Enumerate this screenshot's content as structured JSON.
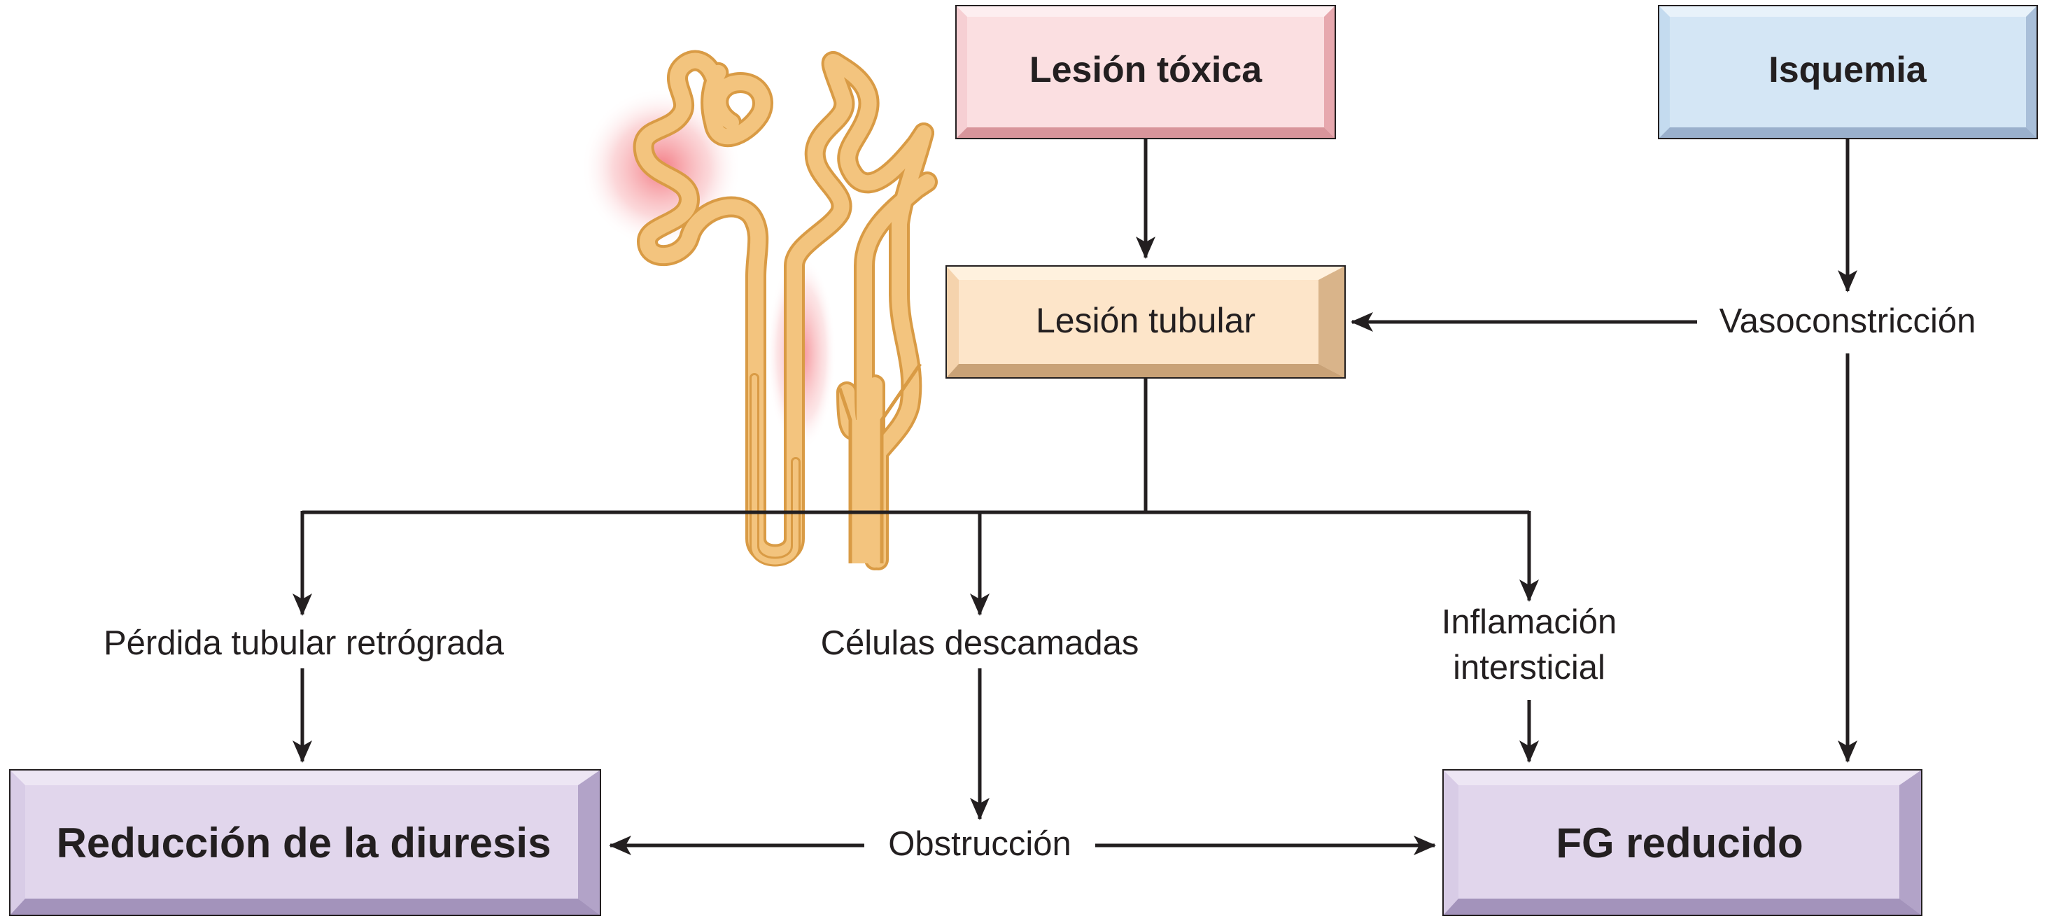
{
  "colors": {
    "toxic_box": "#fbdfe1",
    "ischemia_box": "#d4e6f5",
    "tubular_box": "#fde5c9",
    "outcome_box": "#e1d6ec",
    "tubule": "#f3c47e",
    "highlight": "#ef4f5a",
    "arrow": "#231f20"
  },
  "nodes": {
    "toxic": "Lesión tóxica",
    "ischemia": "Isquemia",
    "tubular": "Lesión tubular",
    "vasoconstriction": "Vasoconstricción",
    "backleak": "Pérdida tubular retrógrada",
    "casts": "Células descamadas",
    "inflammation_line1": "Inflamación",
    "inflammation_line2": "intersticial",
    "obstruction": "Obstrucción",
    "urine_output": "Reducción de la diuresis",
    "gfr": "FG reducido"
  },
  "illustration": {
    "icon": "nephron-icon"
  }
}
